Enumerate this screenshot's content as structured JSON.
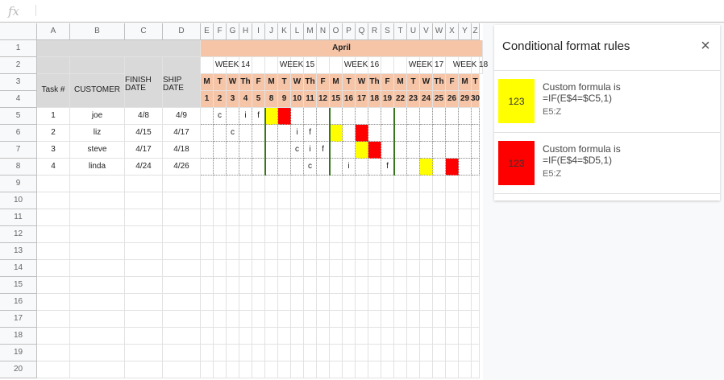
{
  "formula_bar": {
    "fx": "fx"
  },
  "columns": [
    "A",
    "B",
    "C",
    "D",
    "E",
    "F",
    "G",
    "H",
    "I",
    "J",
    "K",
    "L",
    "M",
    "N",
    "O",
    "P",
    "Q",
    "R",
    "S",
    "T",
    "U",
    "V",
    "W",
    "X",
    "Y",
    "Z"
  ],
  "rows": [
    "1",
    "2",
    "3",
    "4",
    "5",
    "6",
    "7",
    "8",
    "9",
    "10",
    "11",
    "12",
    "13",
    "14",
    "15",
    "16",
    "17",
    "18",
    "19",
    "20"
  ],
  "sheet": {
    "month": "April",
    "weeks": [
      "WEEK 14",
      "WEEK 15",
      "WEEK 16",
      "WEEK 17",
      "WEEK 18"
    ],
    "day_letters": [
      "M",
      "T",
      "W",
      "Th",
      "F",
      "M",
      "T",
      "W",
      "Th",
      "F",
      "M",
      "T",
      "W",
      "Th",
      "F",
      "M",
      "T",
      "W",
      "Th",
      "F",
      "M",
      "T"
    ],
    "day_numbers": [
      "1",
      "2",
      "3",
      "4",
      "5",
      "8",
      "9",
      "10",
      "11",
      "12",
      "15",
      "16",
      "17",
      "18",
      "19",
      "22",
      "23",
      "24",
      "25",
      "26",
      "29",
      "30"
    ],
    "headers": {
      "task": "Task #",
      "customer": "CUSTOMER",
      "finish": "FINISH DATE",
      "ship": "SHIP DATE"
    },
    "tasks": [
      {
        "num": "1",
        "customer": "joe",
        "finish": "4/8",
        "ship": "4/9",
        "marks": [
          "",
          "c",
          "",
          "i",
          "f",
          "",
          "",
          "",
          "",
          "",
          "",
          "",
          "",
          "",
          "",
          "",
          "",
          "",
          "",
          "",
          "",
          ""
        ]
      },
      {
        "num": "2",
        "customer": "liz",
        "finish": "4/15",
        "ship": "4/17",
        "marks": [
          "",
          "",
          "c",
          "",
          "",
          "",
          "",
          "i",
          "f",
          "",
          "",
          "",
          "",
          "",
          "",
          "",
          "",
          "",
          "",
          "",
          "",
          ""
        ]
      },
      {
        "num": "3",
        "customer": "steve",
        "finish": "4/17",
        "ship": "4/18",
        "marks": [
          "",
          "",
          "",
          "",
          "",
          "",
          "",
          "c",
          "i",
          "f",
          "",
          "",
          "",
          "",
          "",
          "",
          "",
          "",
          "",
          "",
          "",
          ""
        ]
      },
      {
        "num": "4",
        "customer": "linda",
        "finish": "4/24",
        "ship": "4/26",
        "marks": [
          "",
          "",
          "",
          "",
          "",
          "",
          "",
          "",
          "c",
          "",
          "",
          "i",
          "",
          "",
          "f",
          "",
          "",
          "",
          "",
          "",
          "",
          ""
        ]
      }
    ],
    "fills": [
      [
        "",
        "",
        "",
        "",
        "",
        "Y",
        "R",
        "",
        "",
        "",
        "",
        "",
        "",
        "",
        "",
        "",
        "",
        "",
        "",
        "",
        "",
        ""
      ],
      [
        "",
        "",
        "",
        "",
        "",
        "",
        "",
        "",
        "",
        "",
        "Y",
        "",
        "R",
        "",
        "",
        "",
        "",
        "",
        "",
        "",
        "",
        ""
      ],
      [
        "",
        "",
        "",
        "",
        "",
        "",
        "",
        "",
        "",
        "",
        "",
        "",
        "Y",
        "R",
        "",
        "",
        "",
        "",
        "",
        "",
        "",
        ""
      ],
      [
        "",
        "",
        "",
        "",
        "",
        "",
        "",
        "",
        "",
        "",
        "",
        "",
        "",
        "",
        "",
        "",
        "",
        "Y",
        "",
        "R",
        "",
        ""
      ]
    ],
    "fill_colors": {
      "Y": "#ffff00",
      "R": "#ff0000"
    }
  },
  "panel": {
    "title": "Conditional format rules",
    "close": "×",
    "rules": [
      {
        "preview": "123",
        "line1": "Custom formula is",
        "line2": "=IF(E$4=$C5,1)",
        "range": "E5:Z",
        "color": "#ffff00"
      },
      {
        "preview": "123",
        "line1": "Custom formula is",
        "line2": "=IF(E$4=$D5,1)",
        "range": "E5:Z",
        "color": "#ff0000"
      }
    ]
  }
}
